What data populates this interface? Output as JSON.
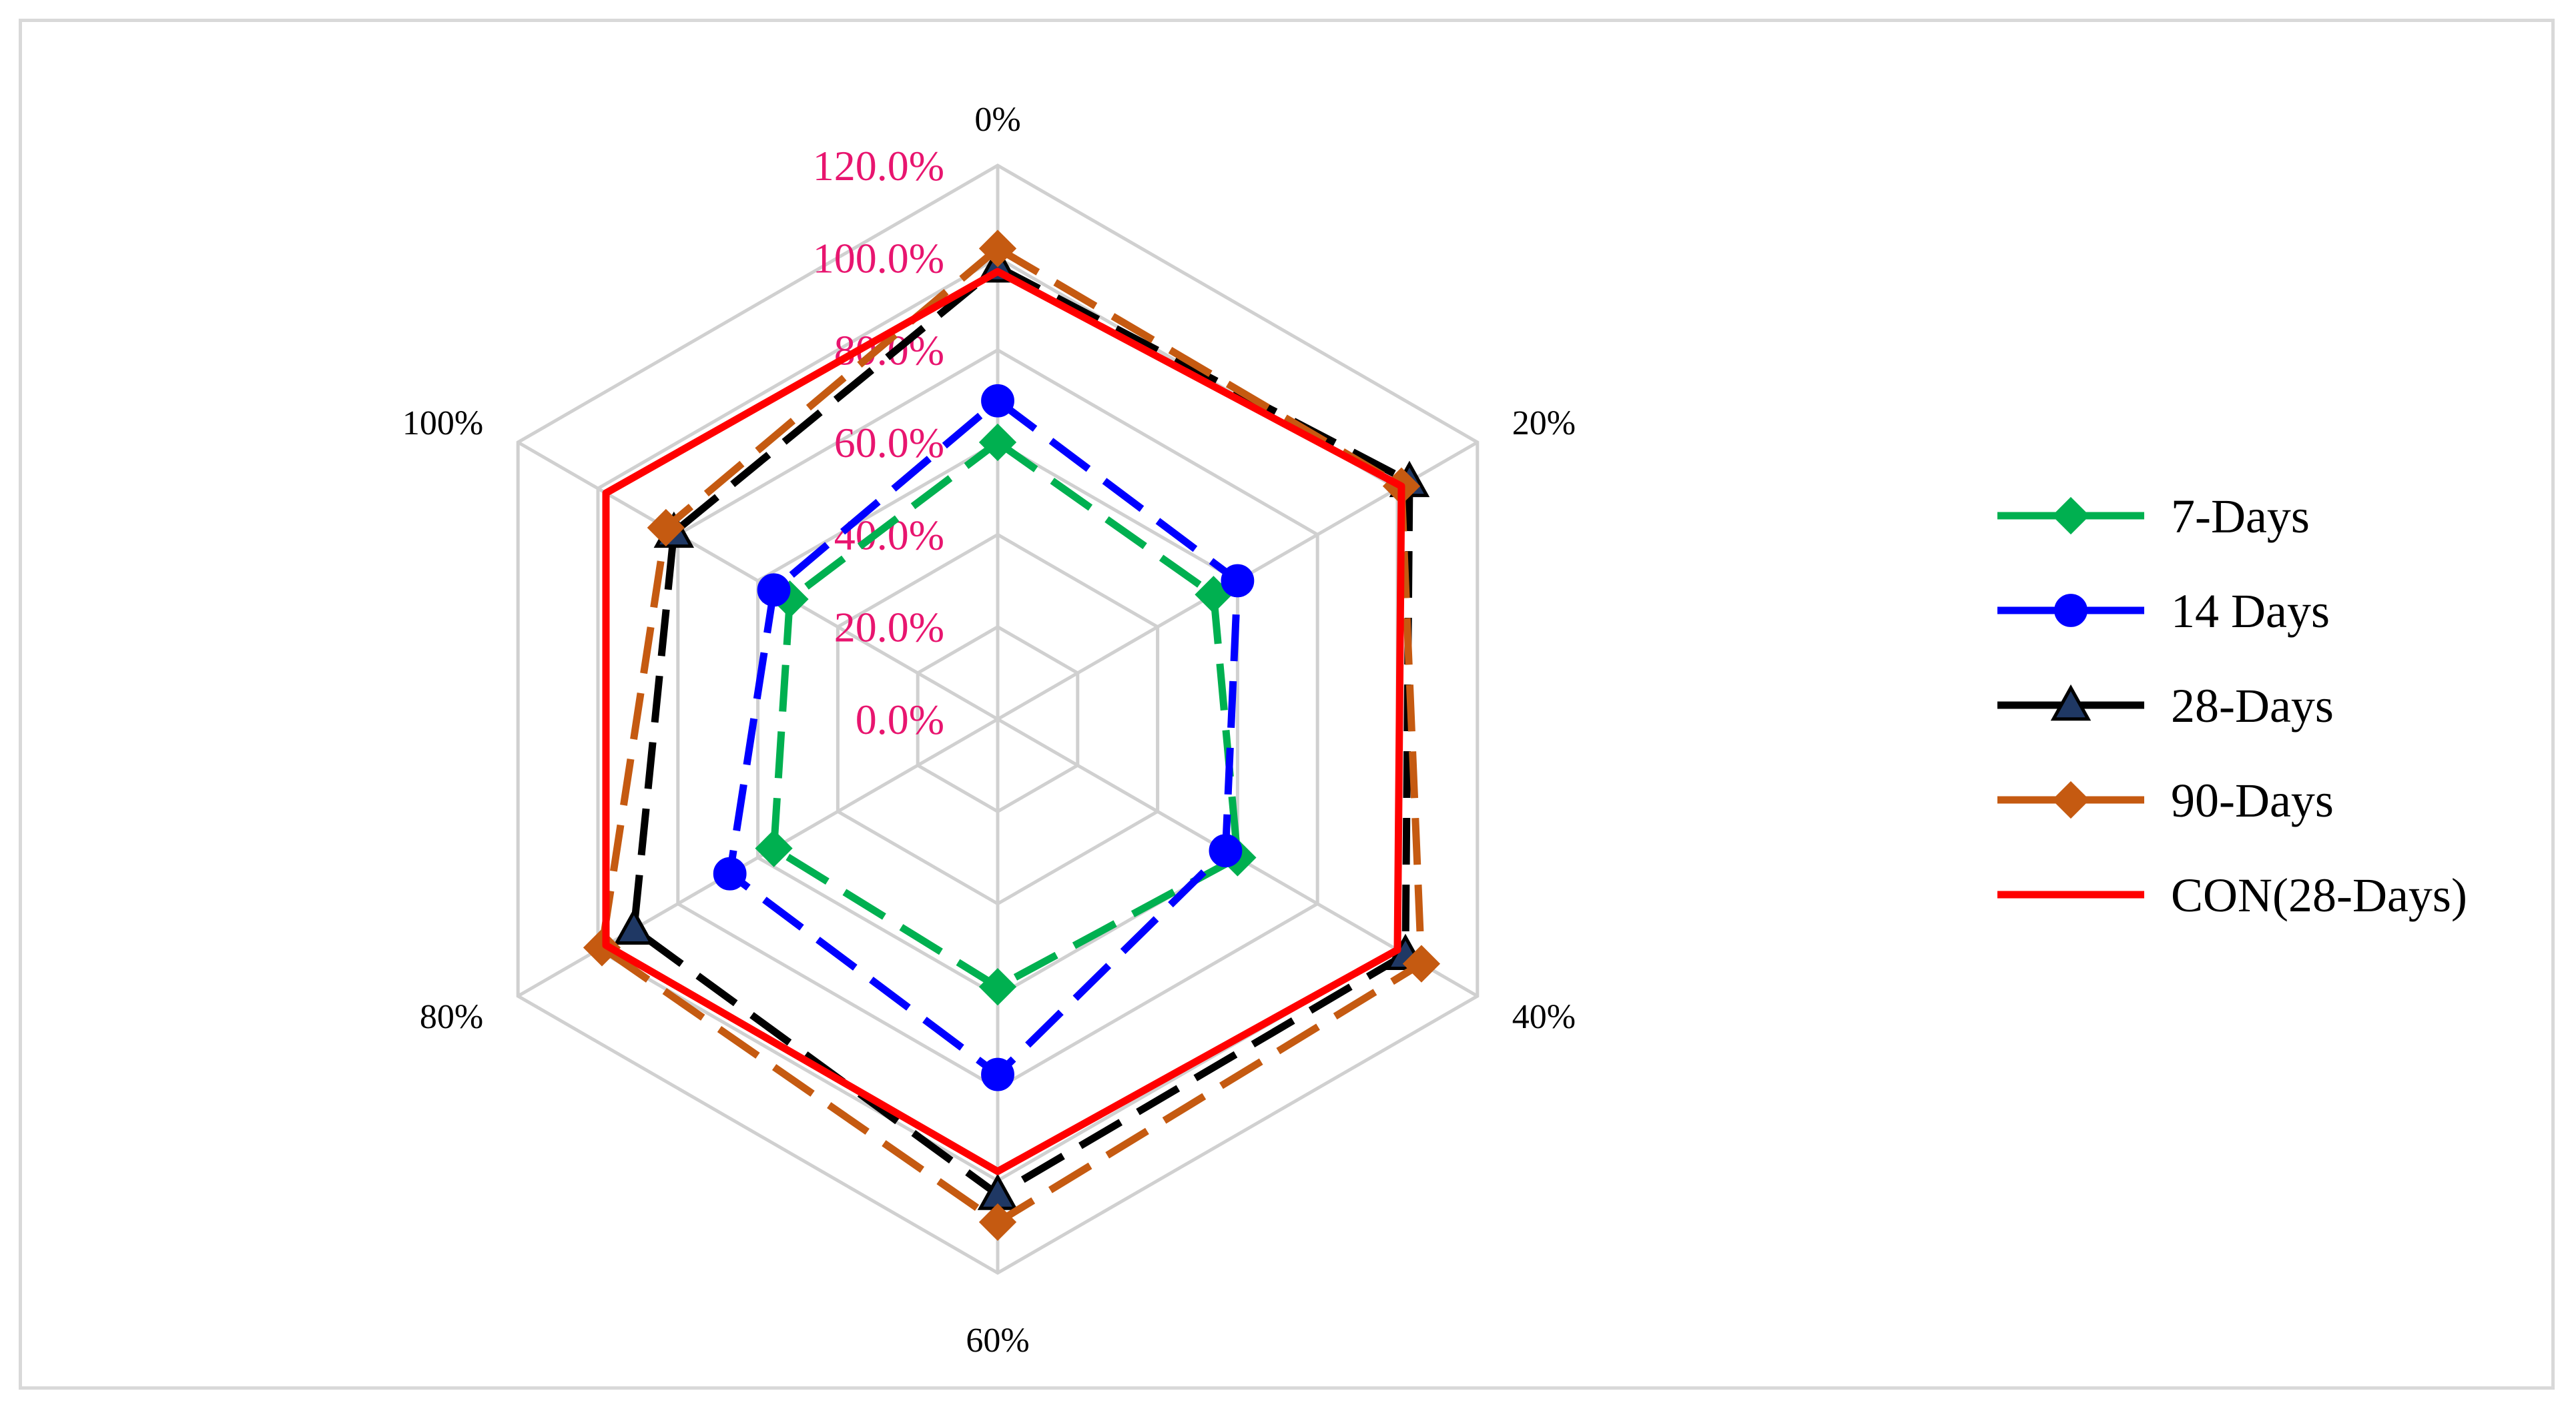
{
  "chart_data": {
    "type": "radar",
    "title": "",
    "categories": [
      "0%",
      "20%",
      "40%",
      "60%",
      "80%",
      "100%"
    ],
    "radial_ticks": [
      "0.0%",
      "20.0%",
      "40.0%",
      "60.0%",
      "80.0%",
      "100.0%",
      "120.0%"
    ],
    "rlim": [
      0,
      120
    ],
    "grid": true,
    "legend_position": "right",
    "series": [
      {
        "name": "7-Days",
        "color": "#00b050",
        "dash": "dashed",
        "marker": "diamond",
        "values": [
          60,
          54,
          60,
          58,
          56,
          52
        ]
      },
      {
        "name": "14 Days",
        "color": "#0000ff",
        "dash": "dashed",
        "marker": "circle",
        "values": [
          69,
          60,
          57,
          77,
          67,
          56
        ]
      },
      {
        "name": "28-Days",
        "color": "#000000",
        "dash": "dashed",
        "marker": "triangle",
        "values": [
          98,
          103,
          102,
          103,
          91,
          81
        ]
      },
      {
        "name": "90-Days",
        "color": "#c55a11",
        "dash": "dashed",
        "marker": "diamond",
        "values": [
          102,
          101,
          106,
          109,
          99,
          83
        ]
      },
      {
        "name": "CON(28-Days)",
        "color": "#ff0000",
        "dash": "solid",
        "marker": "none",
        "values": [
          97,
          101,
          100,
          98,
          98,
          98
        ]
      }
    ]
  }
}
